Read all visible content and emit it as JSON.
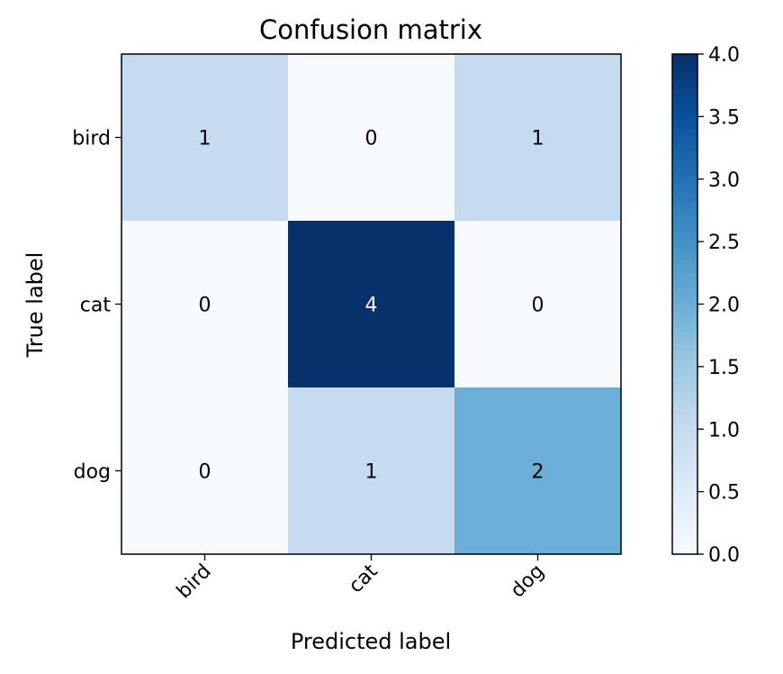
{
  "chart_data": {
    "type": "heatmap",
    "title": "Confusion matrix",
    "xlabel": "Predicted label",
    "ylabel": "True label",
    "x_categories": [
      "bird",
      "cat",
      "dog"
    ],
    "y_categories": [
      "bird",
      "cat",
      "dog"
    ],
    "values": [
      [
        1,
        0,
        1
      ],
      [
        0,
        4,
        0
      ],
      [
        0,
        1,
        2
      ]
    ],
    "colormap": "Blues",
    "color_range": [
      0,
      4
    ],
    "colorbar_ticks": [
      "0.0",
      "0.5",
      "1.0",
      "1.5",
      "2.0",
      "2.5",
      "3.0",
      "3.5",
      "4.0"
    ],
    "grid": false
  }
}
